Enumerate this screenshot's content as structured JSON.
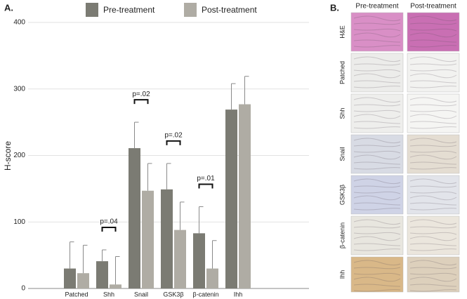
{
  "chart_data": {
    "type": "grouped_bar",
    "panel_label": "A.",
    "ylabel": "H-score",
    "categories": [
      "Patched",
      "Shh",
      "Snail",
      "GSK3β",
      "β-catenin",
      "Ihh"
    ],
    "series": [
      {
        "name": "Pre-treatment",
        "color": "#7b7b73",
        "values": [
          30,
          41,
          211,
          149,
          83,
          269
        ],
        "errors": [
          40,
          17,
          39,
          39,
          40,
          39
        ]
      },
      {
        "name": "Post-treatment",
        "color": "#afaca4",
        "values": [
          23,
          6,
          147,
          88,
          30,
          277
        ],
        "errors": [
          42,
          42,
          41,
          42,
          42,
          42
        ]
      }
    ],
    "ylim": [
      0,
      400
    ],
    "yticks": [
      0,
      100,
      200,
      300,
      400
    ],
    "grid": true,
    "annotations": [
      {
        "text": "p=.04",
        "category": 1
      },
      {
        "text": "p=.02",
        "category": 2
      },
      {
        "text": "p=.02",
        "category": 3
      },
      {
        "text": "p=.01",
        "category": 4
      }
    ]
  },
  "panel_b": {
    "label": "B.",
    "columns": [
      "Pre-treatment",
      "Post-treatment"
    ],
    "rows": [
      "H&E",
      "Patched",
      "Shh",
      "Snail",
      "GSK3β",
      "β-catenin",
      "Ihh"
    ]
  }
}
